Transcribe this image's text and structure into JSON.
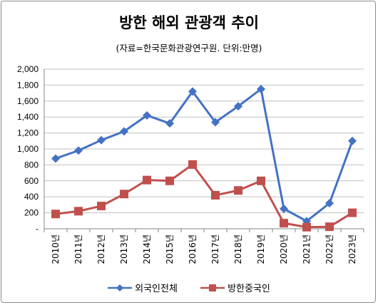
{
  "chart_data": {
    "type": "line",
    "title": "방한 해외 관광객 추이",
    "subtitle": "(자료=한국문화관광연구원. 단위:만명)",
    "categories": [
      "2010년",
      "2011년",
      "2012년",
      "2013년",
      "2014년",
      "2015년",
      "2016년",
      "2017년",
      "2018년",
      "2019년",
      "2020년",
      "2021년",
      "2022년",
      "2023년"
    ],
    "series": [
      {
        "name": "외국인전체",
        "color": "#4472c4",
        "marker": "diamond",
        "values": [
          880,
          980,
          1110,
          1220,
          1420,
          1320,
          1720,
          1335,
          1535,
          1750,
          250,
          95,
          320,
          1100
        ]
      },
      {
        "name": "방한중국인",
        "color": "#c0504d",
        "marker": "square",
        "values": [
          185,
          220,
          285,
          435,
          610,
          600,
          805,
          420,
          480,
          600,
          70,
          20,
          25,
          200
        ]
      }
    ],
    "ylim": [
      0,
      2000
    ],
    "yticks": [
      "-",
      "200",
      "400",
      "600",
      "800",
      "1,000",
      "1,200",
      "1,400",
      "1,600",
      "1,800",
      "2,000"
    ],
    "grid": true,
    "legend_position": "bottom"
  }
}
